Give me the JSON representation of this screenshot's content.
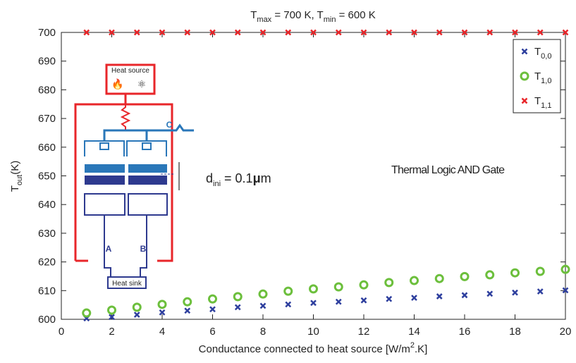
{
  "chart_data": {
    "type": "scatter",
    "title": [
      "T",
      "max",
      " = 700 K, T",
      "min",
      " = 600 K"
    ],
    "xlabel": [
      "Conductance connected to heat source [W/m",
      "2",
      ".K]"
    ],
    "ylabel": [
      "T",
      "out",
      "(K)"
    ],
    "x": [
      1,
      2,
      3,
      4,
      5,
      6,
      7,
      8,
      9,
      10,
      11,
      12,
      13,
      14,
      15,
      16,
      17,
      18,
      19,
      20
    ],
    "series": [
      {
        "name": [
          "T",
          "0,0"
        ],
        "color": "#2e3f9e",
        "marker": "x",
        "values": [
          600.3,
          600.8,
          601.6,
          602.4,
          603.0,
          603.5,
          604.2,
          604.7,
          605.2,
          605.7,
          606.1,
          606.6,
          607.1,
          607.5,
          608.0,
          608.4,
          608.9,
          609.3,
          609.7,
          610.1
        ]
      },
      {
        "name": [
          "T",
          "1,0"
        ],
        "color": "#6cbf3c",
        "marker": "o",
        "values": [
          602.2,
          603.2,
          604.2,
          605.2,
          606.1,
          607.1,
          607.9,
          608.8,
          609.8,
          610.6,
          611.3,
          612.0,
          612.8,
          613.5,
          614.2,
          614.9,
          615.5,
          616.2,
          616.7,
          617.4
        ]
      },
      {
        "name": [
          "T",
          "1,1"
        ],
        "color": "#e8262a",
        "marker": "x",
        "values": [
          700,
          700,
          700,
          700,
          700,
          700,
          700,
          700,
          700,
          700,
          700,
          700,
          700,
          700,
          700,
          700,
          700,
          700,
          700,
          700
        ]
      }
    ],
    "xlim": [
      0,
      20
    ],
    "xticks": [
      0,
      2,
      4,
      6,
      8,
      10,
      12,
      14,
      16,
      18,
      20
    ],
    "ylim": [
      600,
      700
    ],
    "yticks": [
      600,
      610,
      620,
      630,
      640,
      650,
      660,
      670,
      680,
      690,
      700
    ],
    "legend": "upper right",
    "annotations": {
      "gate": "Thermal Logic AND Gate",
      "gap": [
        "d",
        "ini",
        " = 0.1",
        "μ",
        "m"
      ],
      "source": "Heat source",
      "sink": "Heat sink",
      "c": "C",
      "a": "A",
      "b": "B"
    }
  }
}
